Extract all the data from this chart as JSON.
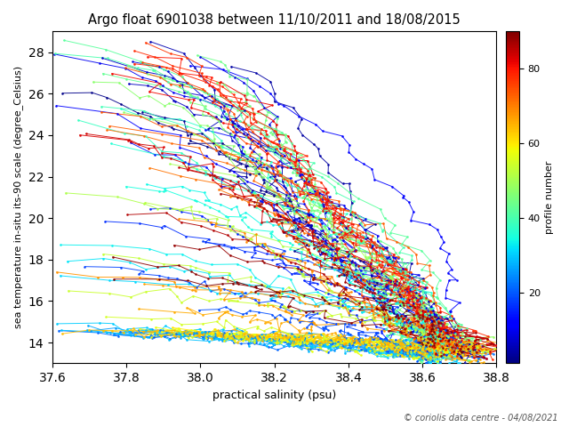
{
  "title": "Argo float 6901038 between 11/10/2011 and 18/08/2015",
  "xlabel": "practical salinity (psu)",
  "ylabel": "sea temperature in-situ its-90 scale (degree_Celsius)",
  "colorbar_label": "profile number",
  "xlim": [
    37.6,
    38.8
  ],
  "ylim": [
    13.0,
    29.0
  ],
  "n_profiles": 90,
  "xticks": [
    37.6,
    37.8,
    38.0,
    38.2,
    38.4,
    38.6,
    38.8
  ],
  "yticks": [
    14,
    16,
    18,
    20,
    22,
    24,
    26,
    28
  ],
  "colorbar_ticks": [
    20,
    40,
    60,
    80
  ],
  "copyright_text": "© coriolis data centre - 04/08/2021",
  "background_color": "#ffffff",
  "cmap": "jet",
  "figsize": [
    6.4,
    4.8
  ],
  "dpi": 100
}
